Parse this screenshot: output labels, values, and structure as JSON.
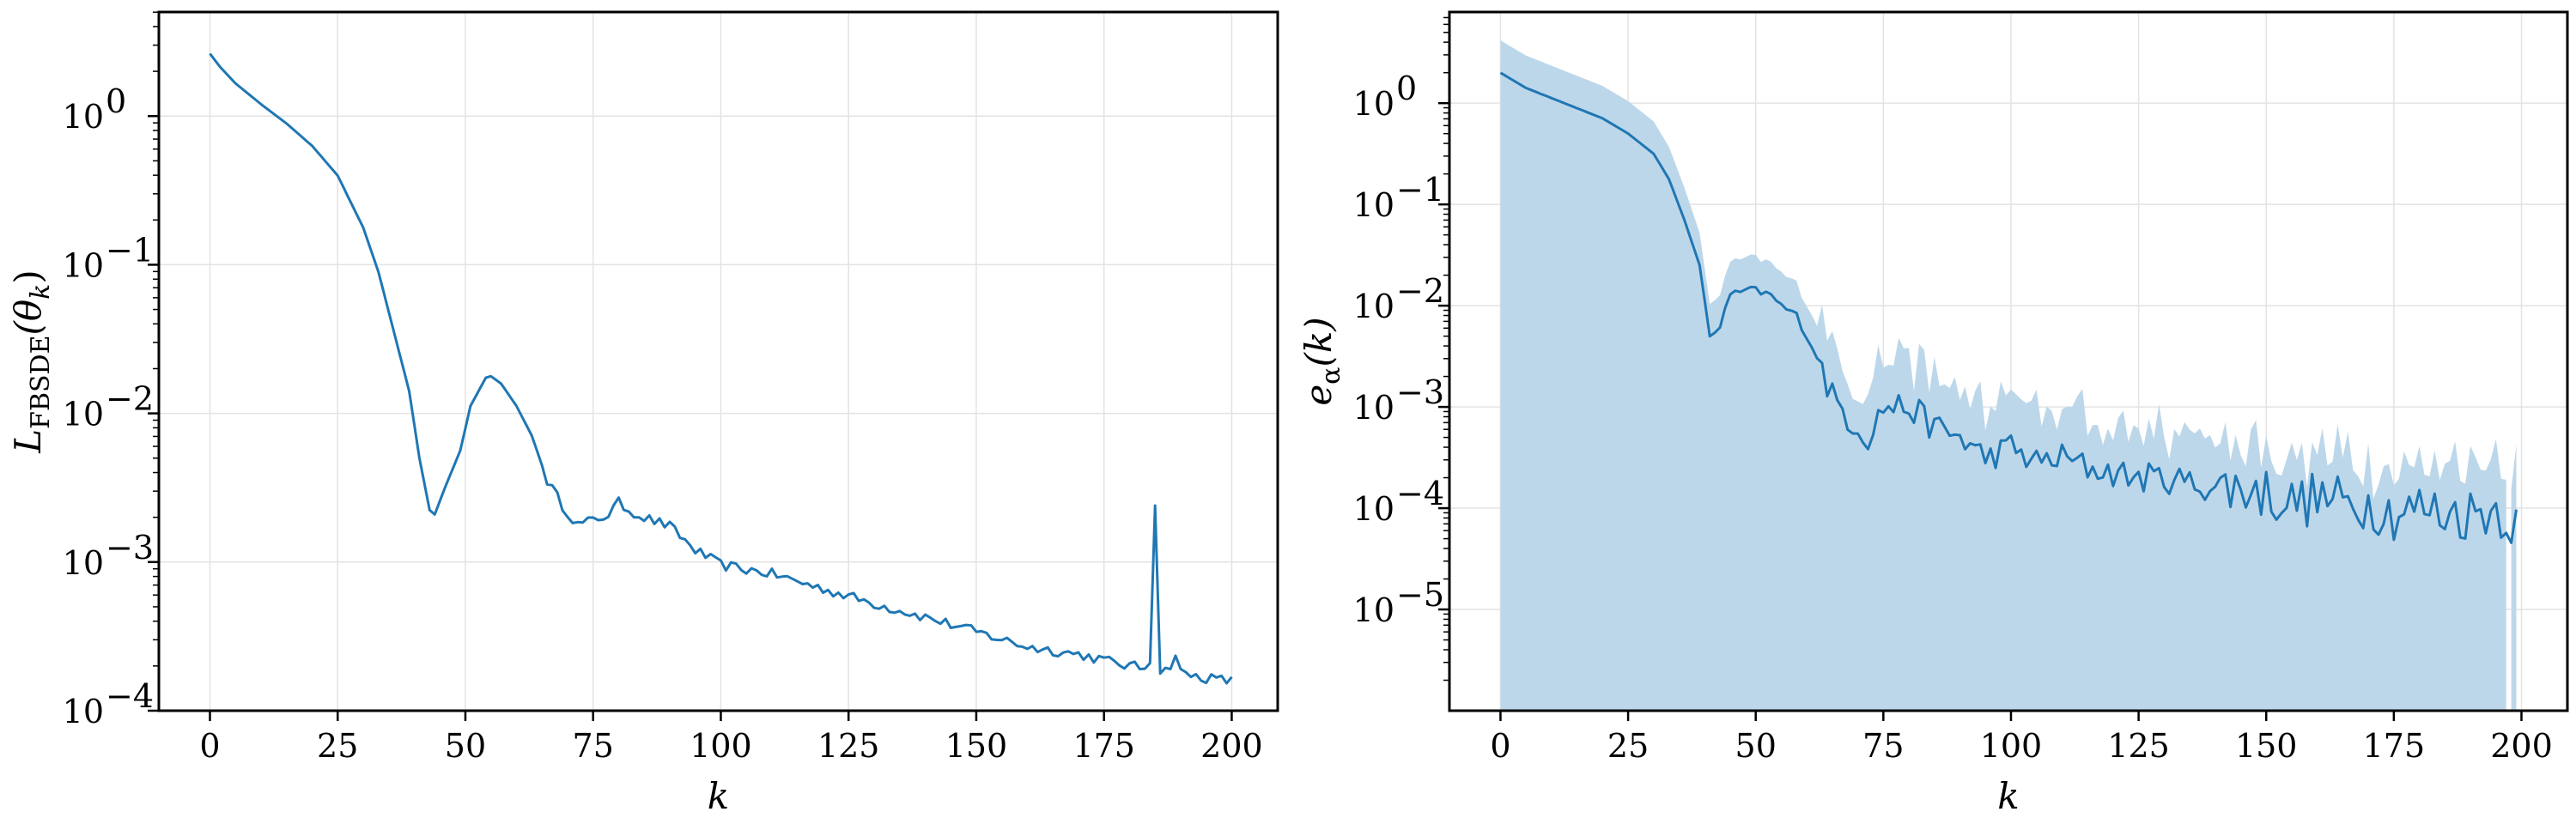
{
  "chart_data": [
    {
      "type": "line",
      "title": "",
      "xlabel": "k",
      "ylabel": "L_FBSDE(θ_k)",
      "ylabel_parts": {
        "main": "L",
        "sub": "FBSDE",
        "arg": "(θ",
        "argsub": "k",
        "close": ")"
      },
      "xlim": [
        -10,
        209
      ],
      "ylim_log10": [
        -4,
        0.7
      ],
      "x_ticks": [
        0,
        25,
        50,
        75,
        100,
        125,
        150,
        175,
        200
      ],
      "y_ticks": [
        {
          "exp": -4,
          "base": "10",
          "label": "−4"
        },
        {
          "exp": -3,
          "base": "10",
          "label": "−3"
        },
        {
          "exp": -2,
          "base": "10",
          "label": "−2"
        },
        {
          "exp": -1,
          "base": "10",
          "label": "−1"
        },
        {
          "exp": 0,
          "base": "10",
          "label": "0"
        }
      ],
      "grid": true,
      "color": "#1f77b4",
      "keypoints_log10": [
        [
          0,
          0.42
        ],
        [
          2,
          0.33
        ],
        [
          5,
          0.22
        ],
        [
          10,
          0.08
        ],
        [
          15,
          -0.05
        ],
        [
          20,
          -0.2
        ],
        [
          25,
          -0.4
        ],
        [
          30,
          -0.75
        ],
        [
          33,
          -1.05
        ],
        [
          36,
          -1.45
        ],
        [
          39,
          -1.85
        ],
        [
          41,
          -2.3
        ],
        [
          43,
          -2.65
        ],
        [
          44,
          -2.68
        ],
        [
          46,
          -2.5
        ],
        [
          49,
          -2.25
        ],
        [
          51,
          -1.95
        ],
        [
          54,
          -1.76
        ],
        [
          55,
          -1.75
        ],
        [
          57,
          -1.8
        ],
        [
          60,
          -1.95
        ],
        [
          63,
          -2.15
        ],
        [
          66,
          -2.45
        ],
        [
          69,
          -2.62
        ],
        [
          72,
          -2.75
        ],
        [
          75,
          -2.72
        ],
        [
          78,
          -2.68
        ],
        [
          80,
          -2.6
        ],
        [
          82,
          -2.65
        ],
        [
          85,
          -2.7
        ],
        [
          90,
          -2.76
        ],
        [
          95,
          -2.92
        ],
        [
          100,
          -3.02
        ],
        [
          110,
          -3.08
        ],
        [
          120,
          -3.18
        ],
        [
          130,
          -3.28
        ],
        [
          140,
          -3.37
        ],
        [
          150,
          -3.47
        ],
        [
          160,
          -3.57
        ],
        [
          170,
          -3.62
        ],
        [
          180,
          -3.7
        ],
        [
          185,
          -3.72
        ],
        [
          190,
          -3.75
        ],
        [
          195,
          -3.78
        ],
        [
          200,
          -3.8
        ]
      ],
      "spikes_log10": [
        [
          184,
          -3.68
        ],
        [
          185,
          -2.62
        ],
        [
          186,
          -3.75
        ],
        [
          188,
          -3.72
        ],
        [
          189,
          -3.63
        ],
        [
          190,
          -3.72
        ]
      ]
    },
    {
      "type": "area",
      "title": "",
      "xlabel": "k",
      "ylabel": "e_α(k)",
      "ylabel_parts": {
        "main": "e",
        "sub": "α",
        "arg": "(k)"
      },
      "xlim": [
        -10,
        209
      ],
      "ylim_log10": [
        -6.0,
        0.9
      ],
      "x_ticks": [
        0,
        25,
        50,
        75,
        100,
        125,
        150,
        175,
        200
      ],
      "y_ticks": [
        {
          "exp": -5,
          "base": "10",
          "label": "−5"
        },
        {
          "exp": -4,
          "base": "10",
          "label": "−4"
        },
        {
          "exp": -3,
          "base": "10",
          "label": "−3"
        },
        {
          "exp": -2,
          "base": "10",
          "label": "−2"
        },
        {
          "exp": -1,
          "base": "10",
          "label": "−1"
        },
        {
          "exp": 0,
          "base": "10",
          "label": "0"
        }
      ],
      "grid": true,
      "line_color": "#1f77b4",
      "band_color": "#bdd7ea",
      "keypoints_log10": [
        [
          0,
          0.3
        ],
        [
          5,
          0.15
        ],
        [
          10,
          0.05
        ],
        [
          15,
          -0.05
        ],
        [
          20,
          -0.15
        ],
        [
          25,
          -0.3
        ],
        [
          30,
          -0.5
        ],
        [
          33,
          -0.75
        ],
        [
          36,
          -1.15
        ],
        [
          39,
          -1.6
        ],
        [
          41,
          -2.3
        ],
        [
          43,
          -2.2
        ],
        [
          45,
          -1.9
        ],
        [
          48,
          -1.85
        ],
        [
          50,
          -1.85
        ],
        [
          53,
          -1.9
        ],
        [
          55,
          -2.0
        ],
        [
          58,
          -2.1
        ],
        [
          62,
          -2.5
        ],
        [
          65,
          -2.9
        ],
        [
          68,
          -3.1
        ],
        [
          72,
          -3.3
        ],
        [
          75,
          -3.0
        ],
        [
          80,
          -3.0
        ],
        [
          85,
          -3.2
        ],
        [
          90,
          -3.3
        ],
        [
          95,
          -3.5
        ],
        [
          100,
          -3.4
        ],
        [
          105,
          -3.55
        ],
        [
          110,
          -3.5
        ],
        [
          115,
          -3.6
        ],
        [
          120,
          -3.65
        ],
        [
          125,
          -3.7
        ],
        [
          130,
          -3.7
        ],
        [
          135,
          -3.75
        ],
        [
          140,
          -3.8
        ],
        [
          145,
          -3.8
        ],
        [
          150,
          -3.85
        ],
        [
          155,
          -3.95
        ],
        [
          160,
          -3.9
        ],
        [
          165,
          -3.95
        ],
        [
          170,
          -3.95
        ],
        [
          175,
          -4.05
        ],
        [
          180,
          -4.0
        ],
        [
          185,
          -4.05
        ],
        [
          190,
          -4.05
        ],
        [
          195,
          -4.0
        ],
        [
          199,
          -4.15
        ]
      ],
      "band_upper_offset": 0.3,
      "x_end": 199,
      "band_gap": [
        197,
        198
      ]
    }
  ]
}
